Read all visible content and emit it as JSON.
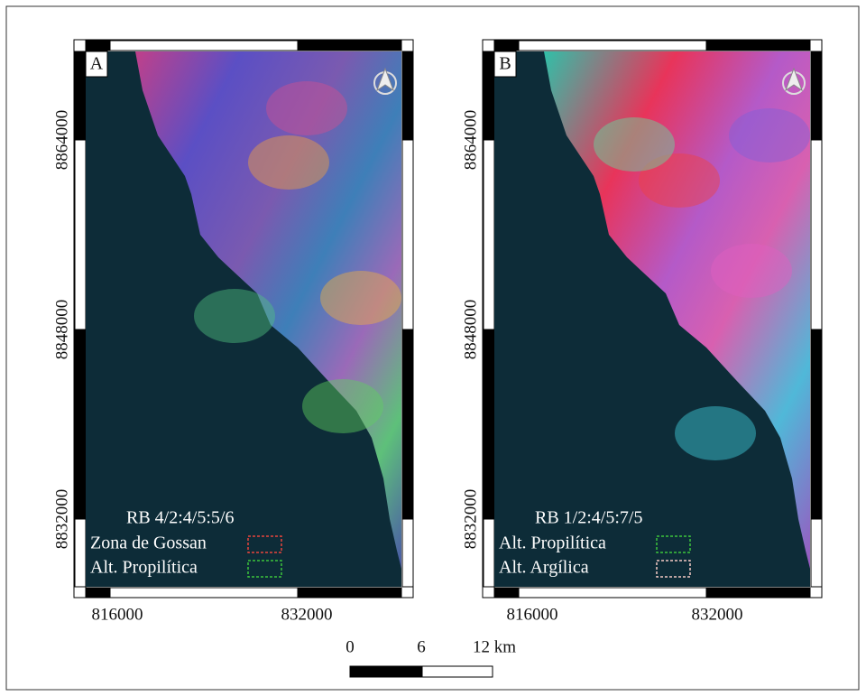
{
  "panels": [
    {
      "label": "A",
      "legend_title": "RB 4/2:4/5:5/6",
      "legend": [
        {
          "label": "Zona de Gossan",
          "color": "#e8453c"
        },
        {
          "label": "Alt. Propilítica",
          "color": "#3cc43c"
        }
      ]
    },
    {
      "label": "B",
      "legend_title": "RB 1/2:4/5:7/5",
      "legend": [
        {
          "label": "Alt. Propilítica",
          "color": "#3cc43c"
        },
        {
          "label": "Alt. Argílica",
          "color": "#f4c9c4"
        }
      ]
    }
  ],
  "x_ticks": [
    816000,
    832000
  ],
  "y_ticks": [
    8864000,
    8848000,
    8832000
  ],
  "scale_bar": {
    "labels": [
      0,
      6,
      "12 km"
    ]
  }
}
